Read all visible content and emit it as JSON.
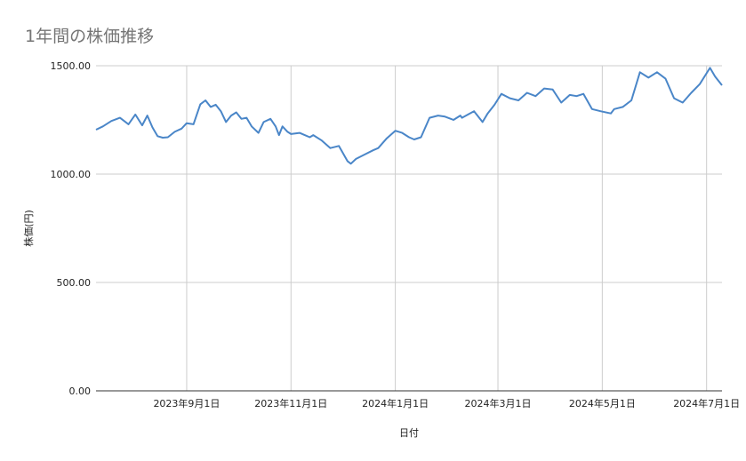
{
  "chart_data": {
    "type": "line",
    "title": "1年間の株価推移",
    "xlabel": "日付",
    "ylabel": "株価(円)",
    "ylim": [
      0,
      1500
    ],
    "xlim": [
      "2023-07-10",
      "2024-07-10"
    ],
    "y_ticks": [
      {
        "value": 0,
        "label": "0.00"
      },
      {
        "value": 500,
        "label": "500.00"
      },
      {
        "value": 1000,
        "label": "1000.00"
      },
      {
        "value": 1500,
        "label": "1500.00"
      }
    ],
    "x_ticks": [
      {
        "date": "2023-09-01",
        "label": "2023年9月1日"
      },
      {
        "date": "2023-11-01",
        "label": "2023年11月1日"
      },
      {
        "date": "2024-01-01",
        "label": "2024年1月1日"
      },
      {
        "date": "2024-03-01",
        "label": "2024年3月1日"
      },
      {
        "date": "2024-05-01",
        "label": "2024年5月1日"
      },
      {
        "date": "2024-07-01",
        "label": "2024年7月1日"
      }
    ],
    "grid": true,
    "legend": "none",
    "line_color": "#4a86c8",
    "series": [
      {
        "x": [
          "2023-07-10",
          "2023-07-14",
          "2023-07-19",
          "2023-07-24",
          "2023-07-29",
          "2023-08-02",
          "2023-08-06",
          "2023-08-09",
          "2023-08-12",
          "2023-08-15",
          "2023-08-18",
          "2023-08-21",
          "2023-08-25",
          "2023-08-29",
          "2023-09-01",
          "2023-09-05",
          "2023-09-09",
          "2023-09-12",
          "2023-09-15",
          "2023-09-18",
          "2023-09-21",
          "2023-09-24",
          "2023-09-27",
          "2023-09-30",
          "2023-10-03",
          "2023-10-06",
          "2023-10-09",
          "2023-10-13",
          "2023-10-16",
          "2023-10-20",
          "2023-10-23",
          "2023-10-25",
          "2023-10-27",
          "2023-10-30",
          "2023-11-01",
          "2023-11-06",
          "2023-11-09",
          "2023-11-12",
          "2023-11-14",
          "2023-11-19",
          "2023-11-24",
          "2023-11-29",
          "2023-12-04",
          "2023-12-06",
          "2023-12-09",
          "2023-12-14",
          "2023-12-19",
          "2023-12-22",
          "2023-12-27",
          "2024-01-01",
          "2024-01-05",
          "2024-01-09",
          "2024-01-12",
          "2024-01-16",
          "2024-01-21",
          "2024-01-26",
          "2024-01-30",
          "2024-02-04",
          "2024-02-08",
          "2024-02-09",
          "2024-02-16",
          "2024-02-21",
          "2024-02-24",
          "2024-02-28",
          "2024-03-03",
          "2024-03-08",
          "2024-03-13",
          "2024-03-18",
          "2024-03-23",
          "2024-03-28",
          "2024-04-02",
          "2024-04-07",
          "2024-04-12",
          "2024-04-16",
          "2024-04-20",
          "2024-04-25",
          "2024-04-30",
          "2024-05-06",
          "2024-05-08",
          "2024-05-13",
          "2024-05-18",
          "2024-05-23",
          "2024-05-28",
          "2024-06-02",
          "2024-06-07",
          "2024-06-12",
          "2024-06-17",
          "2024-06-22",
          "2024-06-27",
          "2024-07-03",
          "2024-07-06",
          "2024-07-10"
        ],
        "y": [
          1205,
          1220,
          1245,
          1260,
          1230,
          1275,
          1225,
          1270,
          1215,
          1175,
          1168,
          1170,
          1195,
          1210,
          1235,
          1230,
          1322,
          1340,
          1310,
          1320,
          1290,
          1240,
          1270,
          1285,
          1255,
          1260,
          1220,
          1190,
          1240,
          1255,
          1220,
          1180,
          1220,
          1195,
          1185,
          1190,
          1180,
          1170,
          1180,
          1155,
          1120,
          1130,
          1060,
          1048,
          1070,
          1090,
          1110,
          1120,
          1165,
          1200,
          1190,
          1170,
          1160,
          1170,
          1260,
          1270,
          1265,
          1250,
          1270,
          1260,
          1290,
          1240,
          1280,
          1320,
          1370,
          1350,
          1340,
          1375,
          1360,
          1395,
          1390,
          1330,
          1365,
          1360,
          1370,
          1300,
          1290,
          1280,
          1300,
          1310,
          1340,
          1470,
          1445,
          1470,
          1440,
          1350,
          1330,
          1375,
          1415,
          1490,
          1450,
          1410
        ]
      }
    ]
  }
}
